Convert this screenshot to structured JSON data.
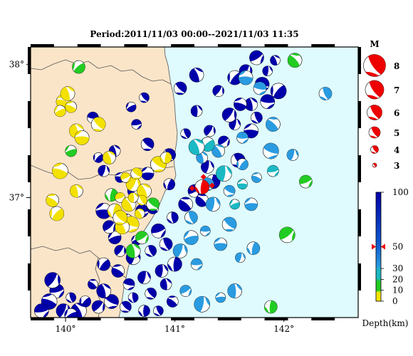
{
  "title": "Period:2011/11/03 00:00--2021/11/03 11:35",
  "colors": {
    "land": "#fbe5c9",
    "sea": "#dffbfd",
    "deep": "#0000aa",
    "mid": "#2a9be0",
    "shallow30": "#1ab9c4",
    "shallow20": "#22cc22",
    "shallow10": "#f3e100",
    "highlight": "#ee0000",
    "border_line": "#555555"
  },
  "map": {
    "lon_ticks": [
      "140°",
      "141°",
      "142°"
    ],
    "lat_ticks": [
      "38°",
      "37°"
    ],
    "lon_range": [
      139.68,
      142.68
    ],
    "lat_range": [
      36.1,
      38.13
    ]
  },
  "legend_magnitude": {
    "header": "M",
    "items": [
      {
        "label": "8",
        "mag": 8
      },
      {
        "label": "7",
        "mag": 7
      },
      {
        "label": "6",
        "mag": 6
      },
      {
        "label": "5",
        "mag": 5
      },
      {
        "label": "4",
        "mag": 4
      },
      {
        "label": "3",
        "mag": 3
      }
    ]
  },
  "legend_depth": {
    "labels": [
      "100",
      "50",
      "30",
      "20",
      "10",
      "0"
    ],
    "unit_label": "Depth(km)",
    "range_km": [
      0,
      100
    ],
    "marker_km": 50
  },
  "chart_data": {
    "type": "scatter",
    "title": "Period:2011/11/03 00:00--2021/11/03 11:35",
    "xlabel": "",
    "ylabel": "",
    "x_ticks": [
      "140°",
      "141°",
      "142°"
    ],
    "y_ticks": [
      "38°",
      "37°"
    ],
    "xlim": [
      139.68,
      142.68
    ],
    "ylim": [
      36.1,
      38.13
    ],
    "series": [
      {
        "depth_class": "deep",
        "points": [
          [
            141.18,
            37.05
          ],
          [
            141.3,
            37.23
          ],
          [
            141.45,
            37.42
          ],
          [
            141.55,
            37.55
          ],
          [
            141.7,
            37.7
          ],
          [
            141.8,
            37.85
          ],
          [
            141.55,
            37.9
          ],
          [
            141.4,
            37.8
          ],
          [
            141.65,
            37.95
          ],
          [
            141.75,
            38.05
          ],
          [
            141.92,
            38.03
          ],
          [
            141.95,
            37.8
          ],
          [
            141.6,
            37.7
          ],
          [
            141.5,
            37.62
          ],
          [
            141.32,
            37.5
          ],
          [
            141.1,
            37.48
          ],
          [
            141.2,
            37.65
          ],
          [
            141.05,
            37.82
          ],
          [
            141.2,
            37.92
          ],
          [
            140.75,
            37.4
          ],
          [
            140.65,
            37.55
          ],
          [
            140.6,
            37.68
          ],
          [
            140.95,
            37.32
          ],
          [
            140.85,
            37.25
          ],
          [
            140.75,
            37.18
          ],
          [
            140.95,
            37.1
          ],
          [
            141.1,
            36.95
          ],
          [
            140.98,
            36.85
          ],
          [
            140.85,
            36.75
          ],
          [
            140.7,
            36.9
          ],
          [
            140.55,
            36.82
          ],
          [
            140.45,
            36.7
          ],
          [
            140.5,
            36.6
          ],
          [
            140.62,
            36.55
          ],
          [
            140.78,
            36.6
          ],
          [
            140.92,
            36.65
          ],
          [
            141.0,
            36.5
          ],
          [
            140.88,
            36.45
          ],
          [
            140.72,
            36.4
          ],
          [
            140.58,
            36.35
          ],
          [
            140.48,
            36.45
          ],
          [
            140.35,
            36.5
          ],
          [
            140.62,
            36.25
          ],
          [
            140.78,
            36.28
          ],
          [
            140.92,
            36.35
          ],
          [
            140.98,
            36.22
          ],
          [
            140.85,
            36.15
          ],
          [
            140.72,
            36.15
          ],
          [
            140.55,
            36.18
          ],
          [
            140.42,
            36.22
          ],
          [
            140.3,
            36.18
          ],
          [
            140.18,
            36.22
          ],
          [
            140.05,
            36.25
          ],
          [
            139.92,
            36.3
          ],
          [
            139.85,
            36.22
          ],
          [
            139.78,
            36.15
          ],
          [
            139.98,
            36.15
          ],
          [
            140.12,
            36.15
          ],
          [
            140.35,
            36.3
          ],
          [
            140.25,
            36.35
          ],
          [
            140.65,
            36.68
          ],
          [
            140.8,
            36.92
          ],
          [
            140.62,
            37.05
          ],
          [
            140.5,
            37.15
          ],
          [
            140.35,
            37.2
          ],
          [
            140.3,
            37.3
          ],
          [
            140.45,
            37.35
          ],
          [
            140.25,
            37.6
          ],
          [
            140.72,
            37.75
          ],
          [
            141.25,
            36.98
          ],
          [
            141.35,
            37.12
          ],
          [
            141.58,
            37.28
          ],
          [
            141.75,
            37.6
          ],
          [
            141.85,
            37.72
          ],
          [
            141.7,
            37.5
          ],
          [
            141.85,
            37.95
          ],
          [
            140.35,
            36.9
          ],
          [
            140.4,
            36.78
          ],
          [
            139.88,
            36.38
          ],
          [
            140.05,
            36.12
          ]
        ]
      },
      {
        "depth_class": "mid",
        "points": [
          [
            141.35,
            36.95
          ],
          [
            141.5,
            37.05
          ],
          [
            141.62,
            37.25
          ],
          [
            141.4,
            37.35
          ],
          [
            141.25,
            37.3
          ],
          [
            141.3,
            37.1
          ],
          [
            141.15,
            36.85
          ],
          [
            141.28,
            36.75
          ],
          [
            141.42,
            36.65
          ],
          [
            141.6,
            36.55
          ],
          [
            141.5,
            36.8
          ],
          [
            141.7,
            36.95
          ],
          [
            141.75,
            37.15
          ],
          [
            141.88,
            37.35
          ],
          [
            141.9,
            37.55
          ],
          [
            142.38,
            37.78
          ],
          [
            142.08,
            37.32
          ],
          [
            141.72,
            36.62
          ],
          [
            141.55,
            36.3
          ],
          [
            141.42,
            36.25
          ],
          [
            141.25,
            36.2
          ],
          [
            141.1,
            36.3
          ],
          [
            141.2,
            36.5
          ],
          [
            141.05,
            36.6
          ],
          [
            141.15,
            36.7
          ],
          [
            141.62,
            37.45
          ],
          [
            141.78,
            37.82
          ],
          [
            141.65,
            37.9
          ]
        ]
      },
      {
        "depth_class": "shallow30",
        "points": [
          [
            141.62,
            37.1
          ],
          [
            141.9,
            37.2
          ],
          [
            141.45,
            37.18
          ],
          [
            141.55,
            36.95
          ],
          [
            141.3,
            37.4
          ],
          [
            141.2,
            37.38
          ]
        ]
      },
      {
        "depth_class": "shallow20",
        "points": [
          [
            140.12,
            37.98
          ],
          [
            142.1,
            38.03
          ],
          [
            140.05,
            37.35
          ],
          [
            140.42,
            37.02
          ],
          [
            140.8,
            36.95
          ],
          [
            140.7,
            36.7
          ],
          [
            142.2,
            37.12
          ],
          [
            142.03,
            36.72
          ],
          [
            141.88,
            36.18
          ],
          [
            140.62,
            36.6
          ]
        ]
      },
      {
        "depth_class": "shallow10",
        "points": [
          [
            139.98,
            37.72
          ],
          [
            140.05,
            37.68
          ],
          [
            140.02,
            37.78
          ],
          [
            139.95,
            37.65
          ],
          [
            140.1,
            37.5
          ],
          [
            140.15,
            37.45
          ],
          [
            140.3,
            37.55
          ],
          [
            139.95,
            37.2
          ],
          [
            140.1,
            37.05
          ],
          [
            139.88,
            36.98
          ],
          [
            139.92,
            36.88
          ],
          [
            140.5,
            37.0
          ],
          [
            140.58,
            36.95
          ],
          [
            140.62,
            37.1
          ],
          [
            140.55,
            37.15
          ],
          [
            140.68,
            36.88
          ],
          [
            140.6,
            36.8
          ],
          [
            140.52,
            36.78
          ],
          [
            140.45,
            36.9
          ],
          [
            140.72,
            37.05
          ],
          [
            140.85,
            37.25
          ],
          [
            140.92,
            37.3
          ],
          [
            140.4,
            37.3
          ],
          [
            140.7,
            36.98
          ],
          [
            140.65,
            37.18
          ],
          [
            140.5,
            36.85
          ],
          [
            140.62,
            37.0
          ]
        ]
      },
      {
        "depth_class": "highlight",
        "points": [
          [
            141.25,
            37.08
          ]
        ]
      }
    ]
  }
}
